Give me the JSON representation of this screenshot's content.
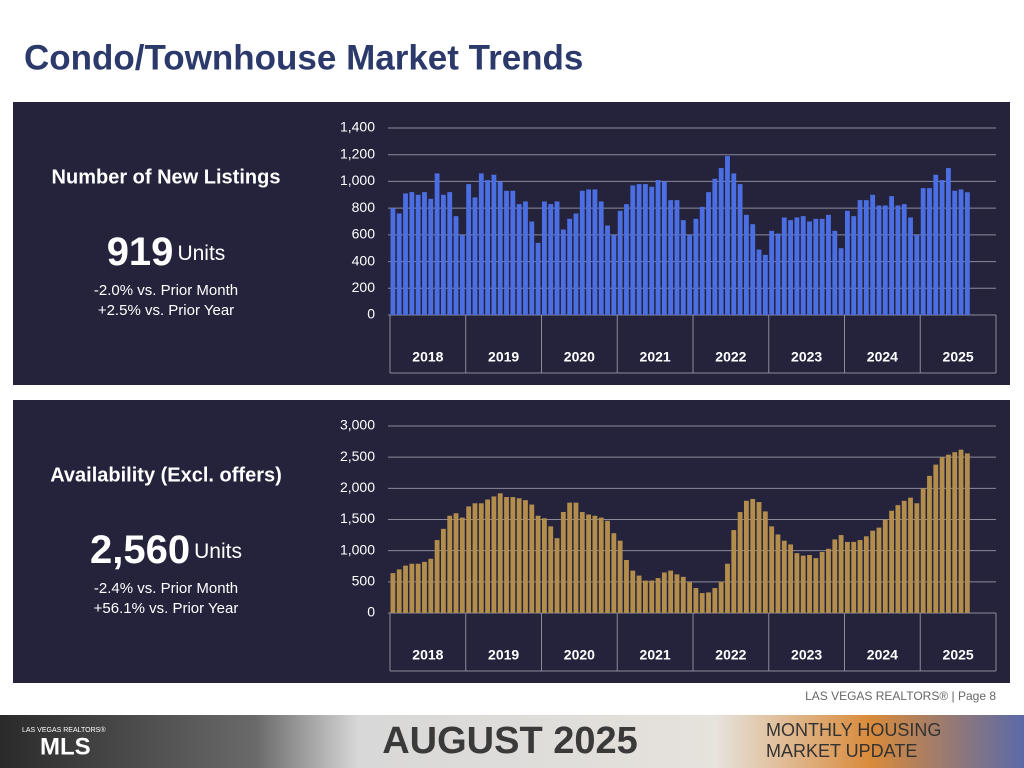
{
  "title": "Condo/Townhouse Market Trends",
  "panels": [
    {
      "heading": "Number of New Listings",
      "value": "919",
      "unit": "Units",
      "changes": [
        "-2.0% vs. Prior Month",
        "+2.5% vs. Prior Year"
      ]
    },
    {
      "heading": "Availability (Excl. offers)",
      "value": "2,560",
      "unit": "Units",
      "changes": [
        "-2.4% vs. Prior Month",
        "+56.1% vs. Prior Year"
      ]
    }
  ],
  "chart_data": [
    {
      "type": "bar",
      "color": "#4b6fe3",
      "grid": true,
      "categories": [
        "2018",
        "2019",
        "2020",
        "2021",
        "2022",
        "2023",
        "2024",
        "2025"
      ],
      "values": [
        [
          800,
          760,
          910,
          920,
          900,
          920,
          870,
          1060,
          900,
          920,
          740,
          600
        ],
        [
          980,
          880,
          1060,
          1010,
          1050,
          1000,
          930,
          930,
          830,
          850,
          700,
          540
        ],
        [
          850,
          830,
          850,
          640,
          720,
          760,
          930,
          940,
          940,
          850,
          670,
          600
        ],
        [
          780,
          830,
          970,
          980,
          980,
          960,
          1010,
          1000,
          860,
          860,
          710,
          600
        ],
        [
          720,
          810,
          920,
          1020,
          1100,
          1190,
          1060,
          980,
          750,
          680,
          490,
          450
        ],
        [
          630,
          610,
          730,
          710,
          730,
          740,
          700,
          720,
          720,
          750,
          630,
          500
        ],
        [
          780,
          740,
          860,
          860,
          900,
          820,
          820,
          890,
          820,
          830,
          730,
          600
        ],
        [
          950,
          950,
          1050,
          1010,
          1100,
          930,
          940,
          919
        ]
      ],
      "ylim": [
        0,
        1400
      ],
      "yticks": [
        0,
        200,
        400,
        600,
        800,
        {
          "value": 1000,
          "label": "1,000"
        },
        {
          "value": 1200,
          "label": "1,200"
        },
        {
          "value": 1400,
          "label": "1,400"
        }
      ]
    },
    {
      "type": "bar",
      "color": "#b38d4c",
      "grid": true,
      "categories": [
        "2018",
        "2019",
        "2020",
        "2021",
        "2022",
        "2023",
        "2024",
        "2025"
      ],
      "values": [
        [
          640,
          700,
          760,
          790,
          790,
          820,
          870,
          1170,
          1350,
          1560,
          1600,
          1530
        ],
        [
          1710,
          1760,
          1760,
          1820,
          1870,
          1920,
          1860,
          1860,
          1840,
          1810,
          1740,
          1560
        ],
        [
          1520,
          1390,
          1200,
          1620,
          1770,
          1770,
          1620,
          1580,
          1560,
          1530,
          1480,
          1280
        ],
        [
          1160,
          850,
          680,
          600,
          520,
          520,
          560,
          650,
          680,
          620,
          580,
          500
        ],
        [
          400,
          320,
          330,
          400,
          500,
          790,
          1330,
          1620,
          1800,
          1830,
          1780,
          1630
        ],
        [
          1390,
          1260,
          1160,
          1100,
          960,
          920,
          930,
          880,
          980,
          1030,
          1180,
          1250
        ],
        [
          1140,
          1140,
          1170,
          1230,
          1320,
          1370,
          1500,
          1640,
          1730,
          1800,
          1850,
          1760
        ],
        [
          2000,
          2200,
          2380,
          2500,
          2540,
          2580,
          2620,
          2560
        ]
      ],
      "ylim": [
        0,
        3000
      ],
      "yticks": [
        0,
        500,
        {
          "value": 1000,
          "label": "1,000"
        },
        {
          "value": 1500,
          "label": "1,500"
        },
        {
          "value": 2000,
          "label": "2,000"
        },
        {
          "value": 2500,
          "label": "2,500"
        },
        {
          "value": 3000,
          "label": "3,000"
        }
      ]
    }
  ],
  "footer": {
    "credit": "LAS VEGAS REALTORS® | Page 8",
    "logo_top": "LAS VEGAS REALTORS®",
    "logo": "MLS",
    "month": "AUGUST 2025",
    "report": [
      "MONTHLY HOUSING",
      "MARKET UPDATE"
    ]
  }
}
